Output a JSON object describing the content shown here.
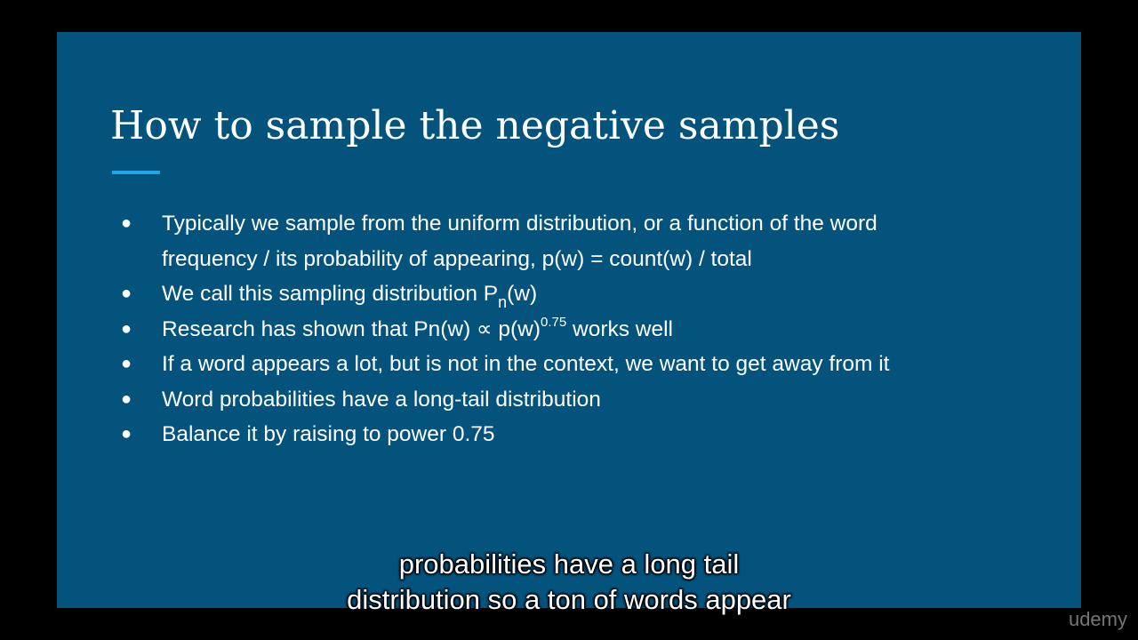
{
  "slide": {
    "title": "How to sample the negative samples",
    "bullets": [
      {
        "line1": "Typically we sample from the uniform distribution, or a function of the word",
        "line2": "frequency / its probability of appearing, p(w) = count(w) / total"
      },
      {
        "text_before": "We call this sampling distribution P",
        "subscript": "n",
        "text_after": "(w)"
      },
      {
        "text_before": "Research has shown that Pn(w) ∝ p(w)",
        "superscript": "0.75",
        "text_after": " works well"
      },
      {
        "text": "If a word appears a lot, but is not in the context, we want to get away from it"
      },
      {
        "text": "Word probabilities have a long-tail distribution"
      },
      {
        "text": "Balance it by raising to power 0.75"
      }
    ],
    "bullet_glyph": "●"
  },
  "captions": {
    "line1": "probabilities have a long tail",
    "line2": "distribution so a ton of words appear"
  },
  "watermark": "udemy",
  "colors": {
    "slide_background": "#03537d",
    "title_accent": "#1ea7e8",
    "text": "#ffffff"
  }
}
